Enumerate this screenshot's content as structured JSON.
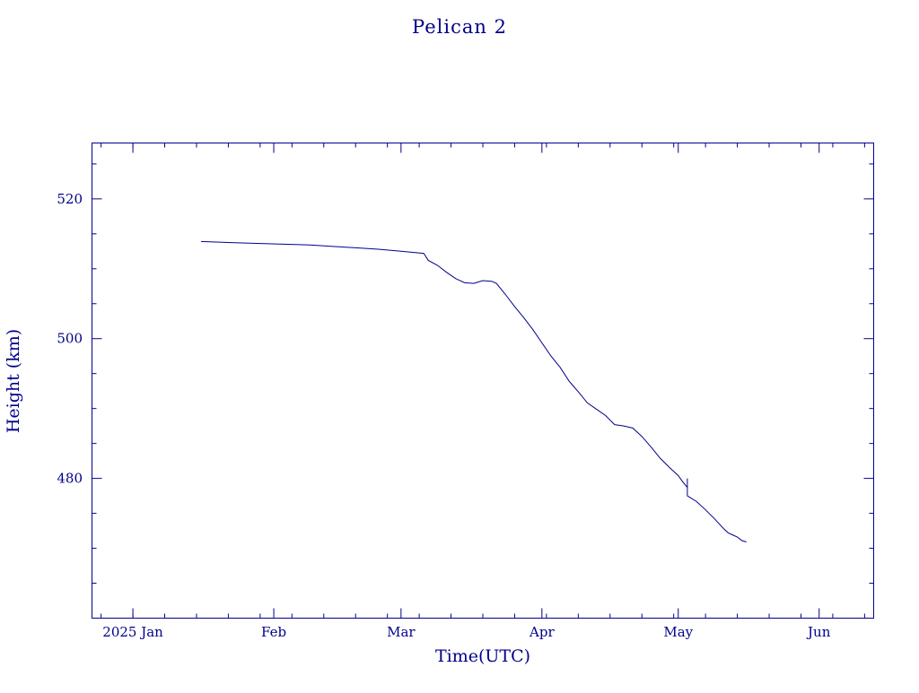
{
  "chart_data": {
    "type": "line",
    "title": "Pelican 2",
    "xlabel": "Time(UTC)",
    "ylabel": "Height (km)",
    "x_axis": {
      "kind": "date",
      "range": [
        "2024-12-23",
        "2025-06-13"
      ],
      "ticks": [
        {
          "date": "2025-01-01",
          "label": "2025 Jan"
        },
        {
          "date": "2025-02-01",
          "label": "Feb"
        },
        {
          "date": "2025-03-01",
          "label": "Mar"
        },
        {
          "date": "2025-04-01",
          "label": "Apr"
        },
        {
          "date": "2025-05-01",
          "label": "May"
        },
        {
          "date": "2025-06-01",
          "label": "Jun"
        }
      ],
      "minor_tick_days": 7
    },
    "y_axis": {
      "range": [
        460,
        528
      ],
      "ticks": [
        480,
        500,
        520
      ],
      "minor_step": 5
    },
    "grid": false,
    "series": [
      {
        "color": "#00008b",
        "points": [
          [
            "2025-01-16",
            513.9
          ],
          [
            "2025-01-20",
            513.8
          ],
          [
            "2025-01-25",
            513.7
          ],
          [
            "2025-01-30",
            513.6
          ],
          [
            "2025-02-04",
            513.5
          ],
          [
            "2025-02-09",
            513.4
          ],
          [
            "2025-02-14",
            513.2
          ],
          [
            "2025-02-19",
            513.0
          ],
          [
            "2025-02-24",
            512.8
          ],
          [
            "2025-03-01",
            512.5
          ],
          [
            "2025-03-06",
            512.2
          ],
          [
            "2025-03-07",
            511.2
          ],
          [
            "2025-03-09",
            510.5
          ],
          [
            "2025-03-11",
            509.5
          ],
          [
            "2025-03-13",
            508.6
          ],
          [
            "2025-03-15",
            508.0
          ],
          [
            "2025-03-17",
            507.9
          ],
          [
            "2025-03-19",
            508.3
          ],
          [
            "2025-03-21",
            508.2
          ],
          [
            "2025-03-22",
            507.9
          ],
          [
            "2025-03-24",
            506.3
          ],
          [
            "2025-03-26",
            504.6
          ],
          [
            "2025-03-28",
            503.0
          ],
          [
            "2025-03-30",
            501.3
          ],
          [
            "2025-04-01",
            499.4
          ],
          [
            "2025-04-03",
            497.5
          ],
          [
            "2025-04-05",
            495.9
          ],
          [
            "2025-04-07",
            493.9
          ],
          [
            "2025-04-09",
            492.4
          ],
          [
            "2025-04-11",
            490.8
          ],
          [
            "2025-04-13",
            489.9
          ],
          [
            "2025-04-15",
            489.0
          ],
          [
            "2025-04-17",
            487.7
          ],
          [
            "2025-04-19",
            487.5
          ],
          [
            "2025-04-21",
            487.2
          ],
          [
            "2025-04-23",
            486.0
          ],
          [
            "2025-04-25",
            484.5
          ],
          [
            "2025-04-27",
            482.9
          ],
          [
            "2025-04-29",
            481.6
          ],
          [
            "2025-05-01",
            480.4
          ],
          [
            "2025-05-02",
            479.5
          ],
          [
            "2025-05-03",
            478.7
          ],
          [
            "2025-05-03",
            480.0
          ],
          [
            "2025-05-03",
            477.5
          ],
          [
            "2025-05-05",
            476.7
          ],
          [
            "2025-05-07",
            475.5
          ],
          [
            "2025-05-09",
            474.2
          ],
          [
            "2025-05-11",
            472.8
          ],
          [
            "2025-05-12",
            472.2
          ],
          [
            "2025-05-13",
            471.9
          ],
          [
            "2025-05-14",
            471.6
          ],
          [
            "2025-05-15",
            471.1
          ],
          [
            "2025-05-16",
            470.9
          ]
        ]
      }
    ]
  }
}
